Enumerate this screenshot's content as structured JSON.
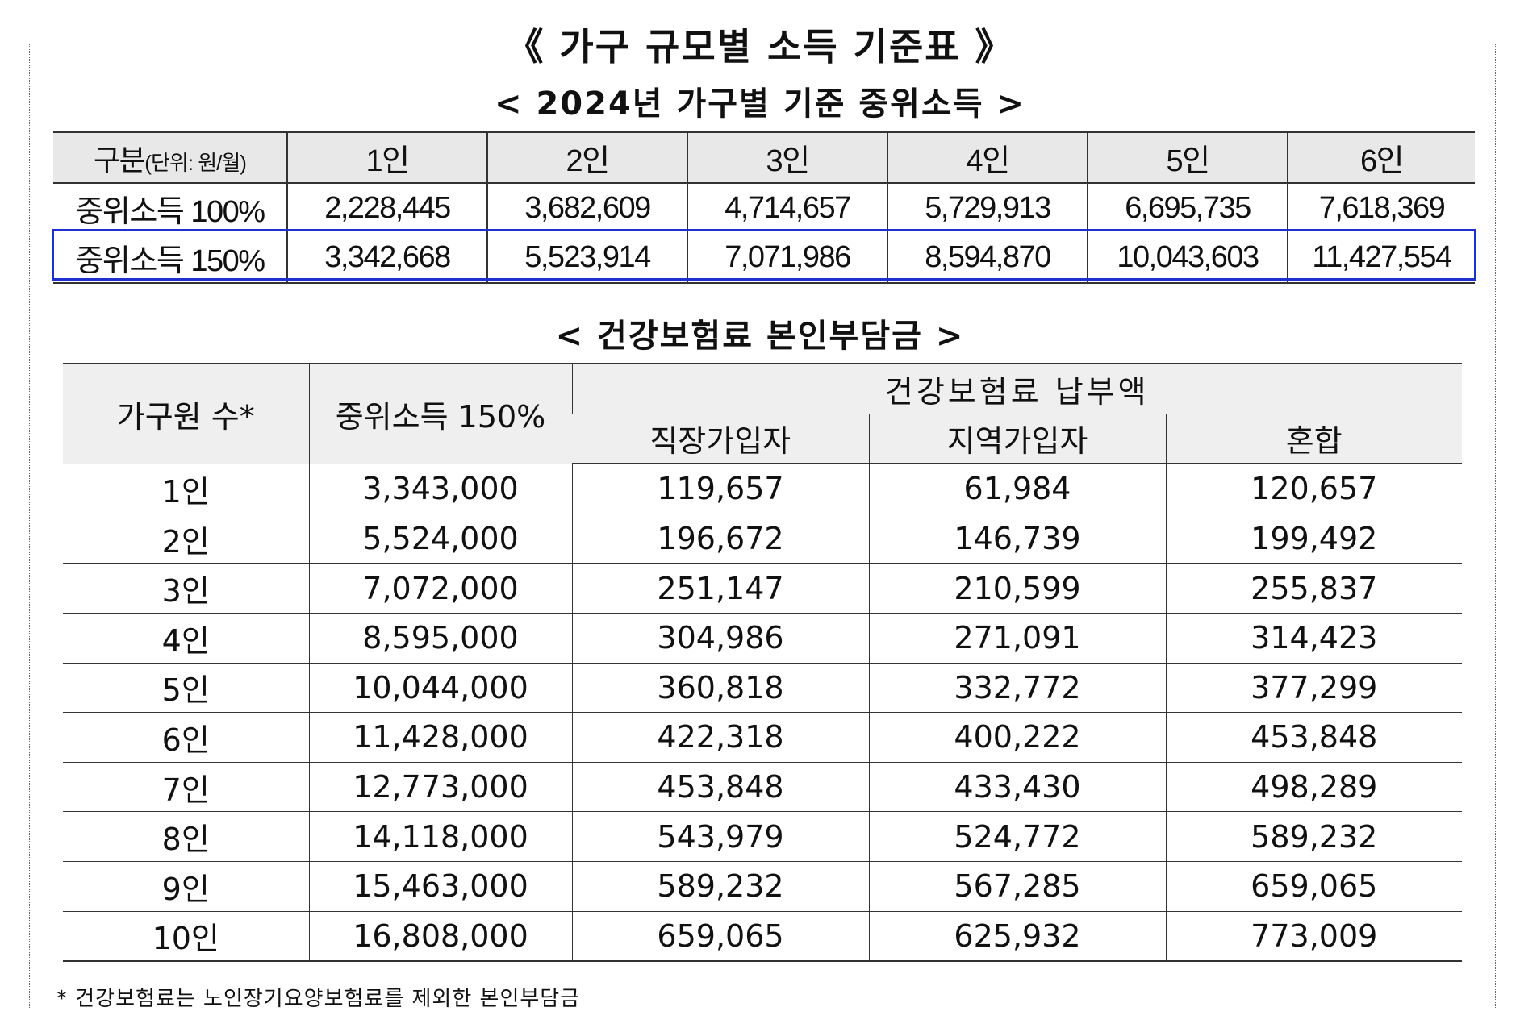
{
  "main_title": "《 가구 규모별 소득 기준표 》",
  "income_table": {
    "title": "< 2024년 가구별 기준 중위소득 >",
    "header_label": "구분",
    "header_unit": "(단위: 원/월)",
    "columns": [
      "1인",
      "2인",
      "3인",
      "4인",
      "5인",
      "6인"
    ],
    "rows": [
      {
        "label": "중위소득 100%",
        "values": [
          "2,228,445",
          "3,682,609",
          "4,714,657",
          "5,729,913",
          "6,695,735",
          "7,618,369"
        ]
      },
      {
        "label": "중위소득 150%",
        "values": [
          "3,342,668",
          "5,523,914",
          "7,071,986",
          "8,594,870",
          "10,043,603",
          "11,427,554"
        ]
      }
    ],
    "highlight_color": "#1f2fd0"
  },
  "insurance_table": {
    "title": "< 건강보험료 본인부담금 >",
    "header": {
      "members": "가구원 수*",
      "income": "중위소득 150%",
      "premium_group": "건강보험료 납부액",
      "sub_columns": [
        "직장가입자",
        "지역가입자",
        "혼합"
      ]
    },
    "rows": [
      {
        "members": "1인",
        "income": "3,343,000",
        "employee": "119,657",
        "regional": "61,984",
        "mixed": "120,657"
      },
      {
        "members": "2인",
        "income": "5,524,000",
        "employee": "196,672",
        "regional": "146,739",
        "mixed": "199,492"
      },
      {
        "members": "3인",
        "income": "7,072,000",
        "employee": "251,147",
        "regional": "210,599",
        "mixed": "255,837"
      },
      {
        "members": "4인",
        "income": "8,595,000",
        "employee": "304,986",
        "regional": "271,091",
        "mixed": "314,423"
      },
      {
        "members": "5인",
        "income": "10,044,000",
        "employee": "360,818",
        "regional": "332,772",
        "mixed": "377,299"
      },
      {
        "members": "6인",
        "income": "11,428,000",
        "employee": "422,318",
        "regional": "400,222",
        "mixed": "453,848"
      },
      {
        "members": "7인",
        "income": "12,773,000",
        "employee": "453,848",
        "regional": "433,430",
        "mixed": "498,289"
      },
      {
        "members": "8인",
        "income": "14,118,000",
        "employee": "543,979",
        "regional": "524,772",
        "mixed": "589,232"
      },
      {
        "members": "9인",
        "income": "15,463,000",
        "employee": "589,232",
        "regional": "567,285",
        "mixed": "659,065"
      },
      {
        "members": "10인",
        "income": "16,808,000",
        "employee": "659,065",
        "regional": "625,932",
        "mixed": "773,009"
      }
    ]
  },
  "footnote": "* 건강보험료는 노인장기요양보험료를 제외한 본인부담금"
}
